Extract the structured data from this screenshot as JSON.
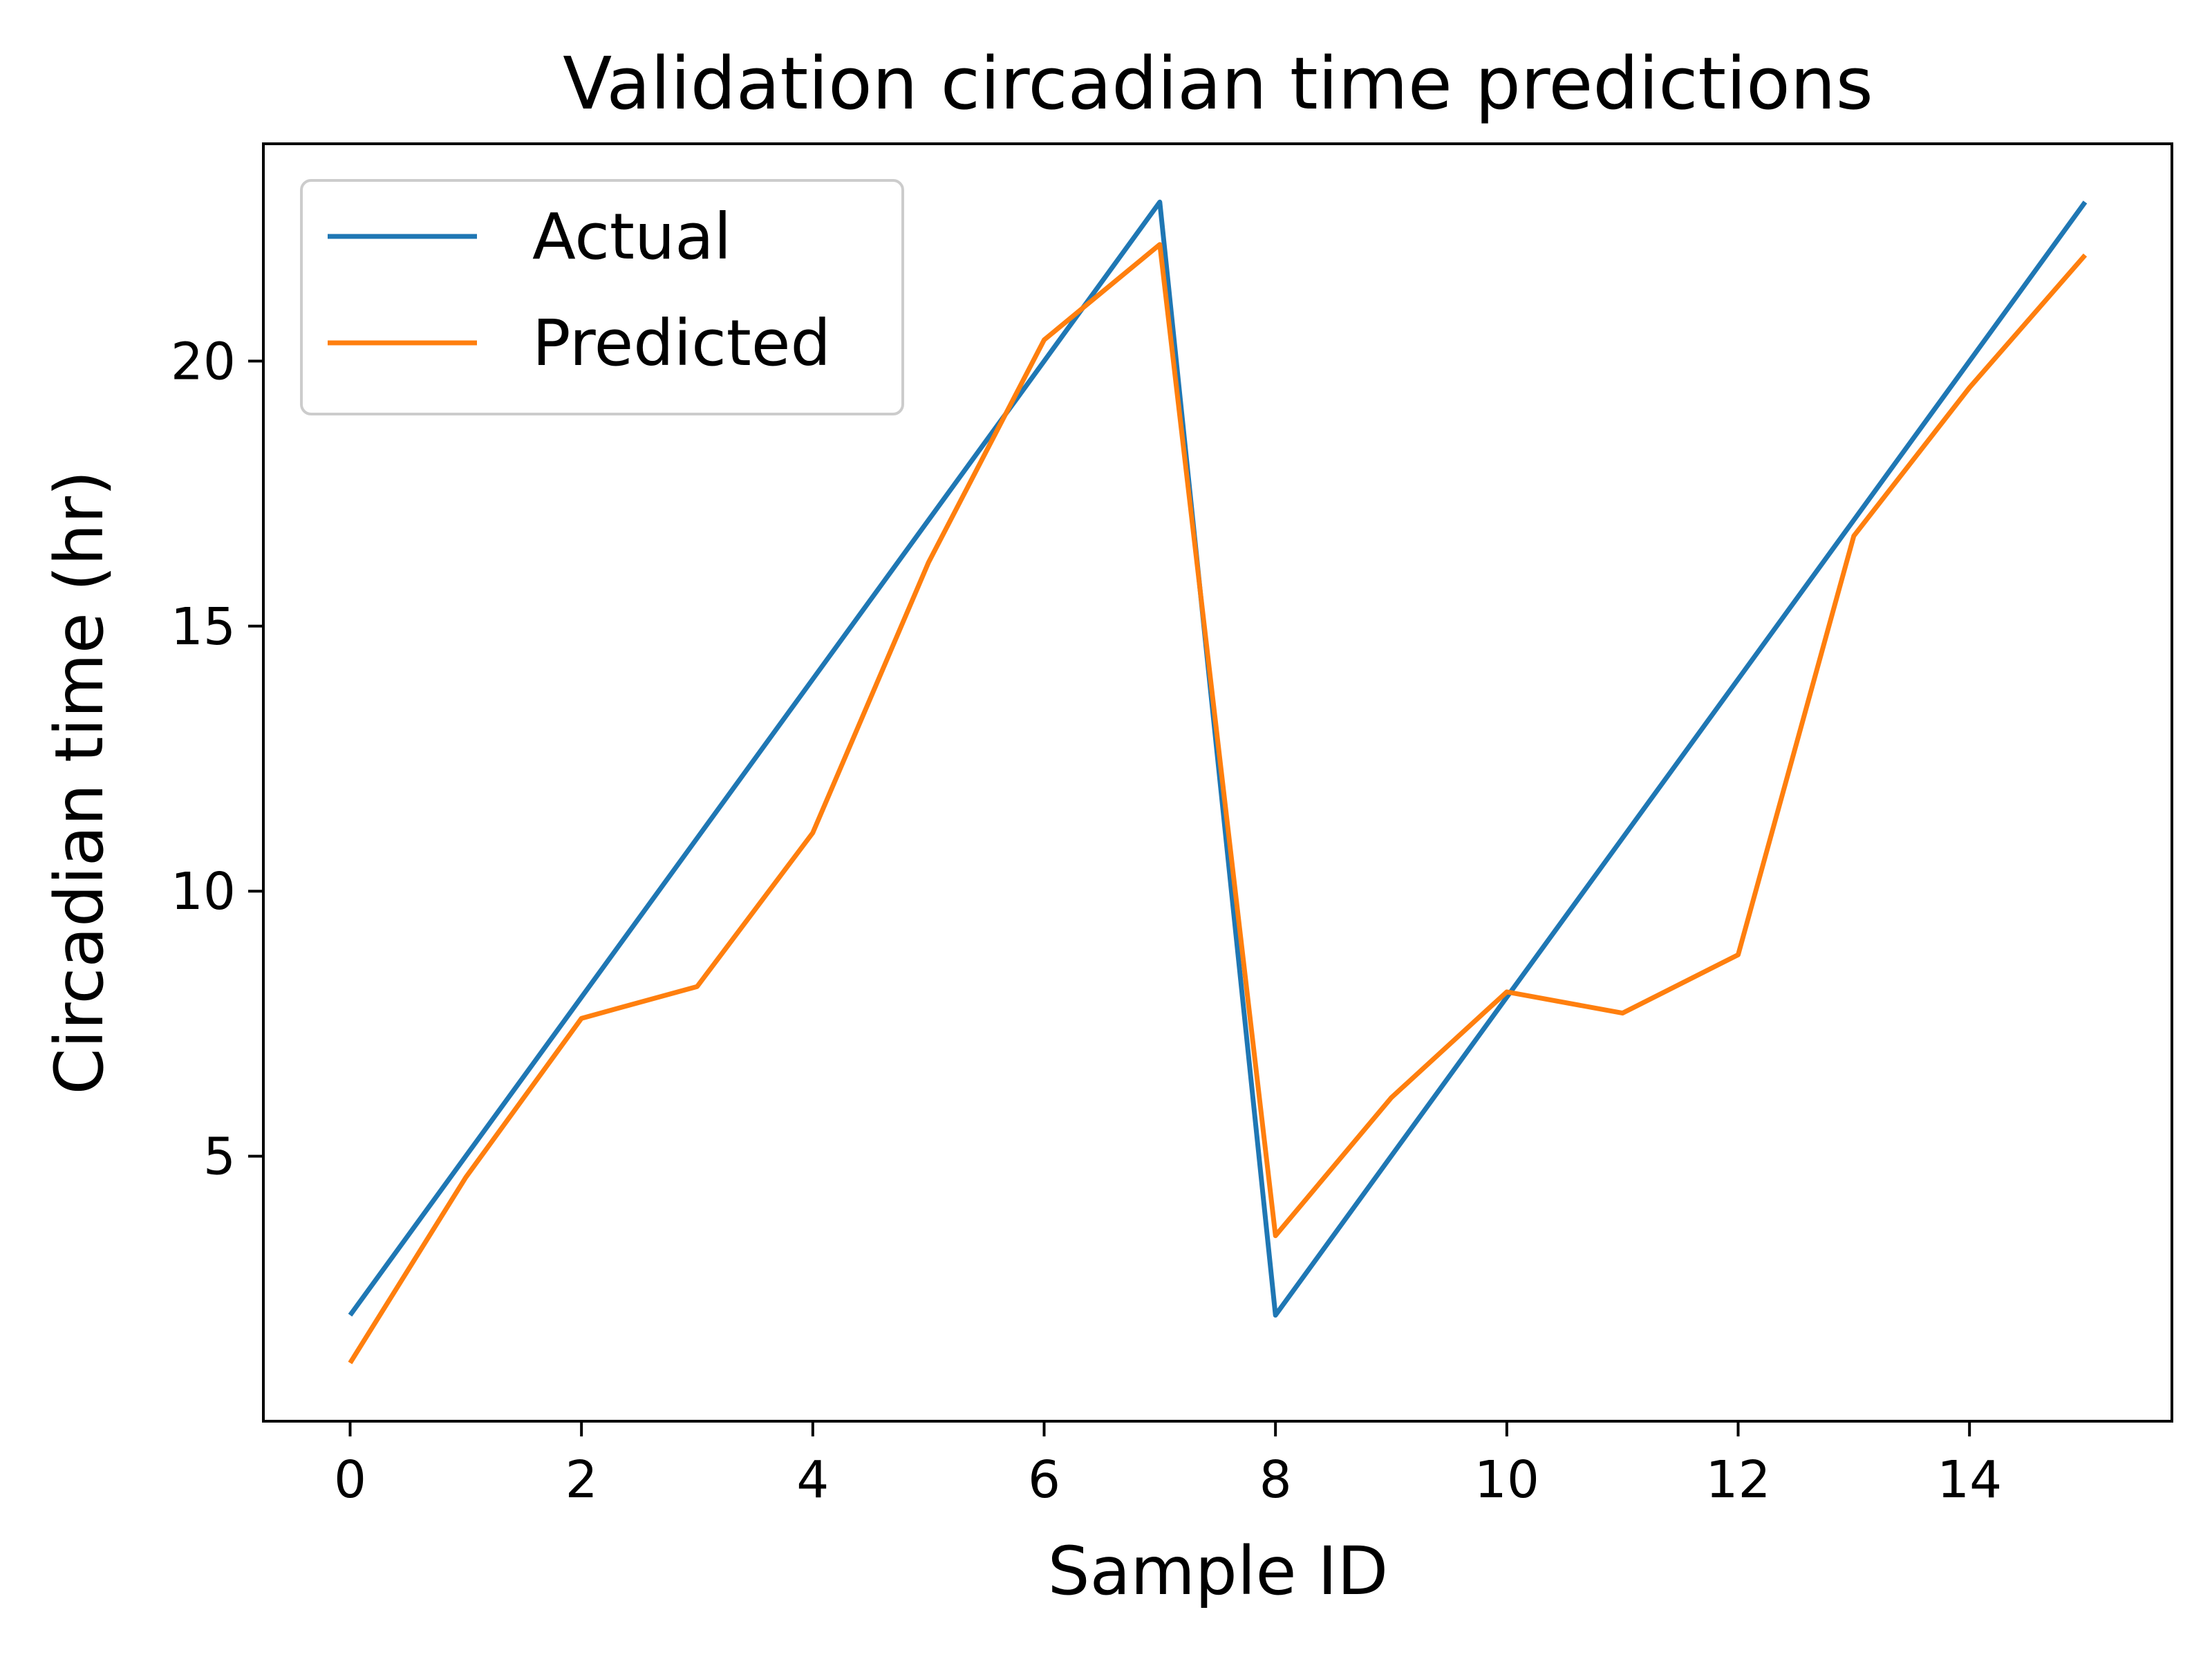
{
  "chart_data": {
    "type": "line",
    "title": "Validation circadian time predictions",
    "xlabel": "Sample ID",
    "ylabel": "Circadian time (hr)",
    "xlim": [
      -0.75,
      15.75
    ],
    "ylim": [
      0.0,
      24.1
    ],
    "xticks": [
      0,
      2,
      4,
      6,
      8,
      10,
      12,
      14
    ],
    "yticks": [
      5,
      10,
      15,
      20
    ],
    "grid": false,
    "legend": {
      "position": "top-left"
    },
    "series": [
      {
        "name": "Actual",
        "color": "#1f77b4",
        "x": [
          0,
          1,
          2,
          3,
          4,
          5,
          6,
          7,
          8,
          9,
          10,
          11,
          12,
          13,
          14,
          15
        ],
        "y": [
          2,
          5,
          8,
          11,
          14,
          17,
          20,
          23,
          2,
          5,
          8,
          11,
          14,
          17,
          20,
          23
        ]
      },
      {
        "name": "Predicted",
        "color": "#ff7f0e",
        "x": [
          0,
          1,
          2,
          3,
          4,
          5,
          6,
          7,
          8,
          9,
          10,
          11,
          12,
          13,
          14,
          15
        ],
        "y": [
          1.1,
          4.6,
          7.6,
          8.2,
          11.1,
          16.2,
          20.4,
          22.2,
          3.5,
          6.1,
          8.1,
          7.7,
          8.8,
          16.7,
          19.5,
          22.0
        ]
      }
    ]
  }
}
